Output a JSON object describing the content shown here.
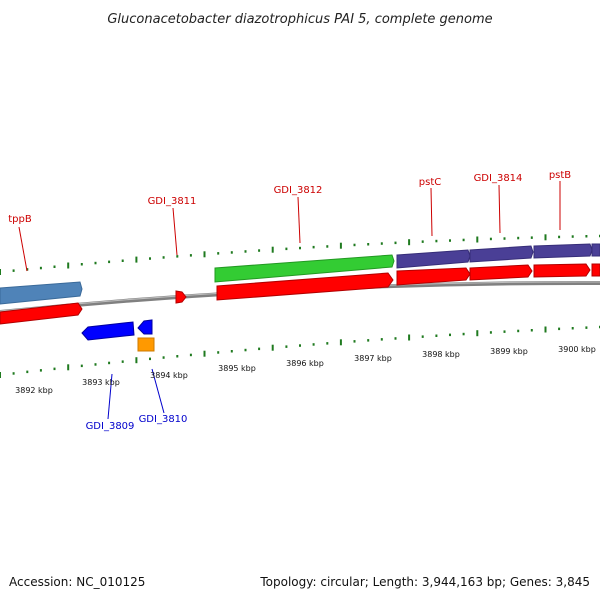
{
  "title": "Gluconacetobacter diazotrophicus PAI 5, complete genome",
  "footer": {
    "accession": "Accession: NC_010125",
    "summary": "Topology: circular; Length: 3,944,163 bp; Genes: 3,845"
  },
  "colors": {
    "backbone": "#8c8c8c",
    "tick": "#1f7a1f",
    "forward_label": "#cc0000",
    "reverse_label": "#0000cc",
    "cds": "#ff0000",
    "gene_steelblue": "#4f83b8",
    "gene_green": "#33cc33",
    "gene_purple": "#4a3f96",
    "reverse_gene": "#0000ff",
    "orange": "#ff9900"
  },
  "scale_labels": [
    "3892 kbp",
    "3893 kbp",
    "3894 kbp",
    "3895 kbp",
    "3896 kbp",
    "3897 kbp",
    "3898 kbp",
    "3899 kbp",
    "3900 kbp"
  ],
  "gene_labels": {
    "forward": [
      "tppB",
      "GDI_3811",
      "GDI_3812",
      "pstC",
      "GDI_3814",
      "pstB"
    ],
    "reverse": [
      "GDI_3809",
      "GDI_3810"
    ]
  }
}
